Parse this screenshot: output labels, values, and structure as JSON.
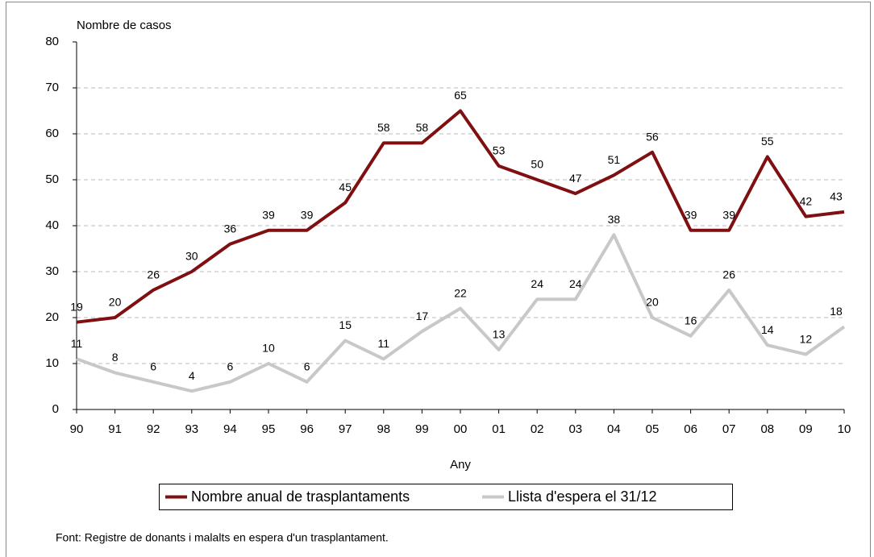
{
  "chart_data": {
    "type": "line",
    "y_label": "Nombre de casos",
    "x_label": "Any",
    "source": "Font: Registre de donants i malalts en espera d'un trasplantament.",
    "categories": [
      "90",
      "91",
      "92",
      "93",
      "94",
      "95",
      "96",
      "97",
      "98",
      "99",
      "00",
      "01",
      "02",
      "03",
      "04",
      "05",
      "06",
      "07",
      "08",
      "09",
      "10"
    ],
    "series": [
      {
        "name": "Nombre anual de trasplantaments",
        "color": "#7f0f10",
        "values": [
          19,
          20,
          26,
          30,
          36,
          39,
          39,
          45,
          58,
          58,
          65,
          53,
          50,
          47,
          51,
          56,
          39,
          39,
          55,
          42,
          43
        ]
      },
      {
        "name": "Llista d'espera el 31/12",
        "color": "#c8c8c8",
        "values": [
          11,
          8,
          6,
          4,
          6,
          10,
          6,
          15,
          11,
          17,
          22,
          13,
          24,
          24,
          38,
          20,
          16,
          26,
          14,
          12,
          18
        ]
      }
    ],
    "ylim": [
      0,
      80
    ],
    "yticks": [
      0,
      10,
      20,
      30,
      40,
      50,
      60,
      70,
      80
    ],
    "grid": true
  }
}
